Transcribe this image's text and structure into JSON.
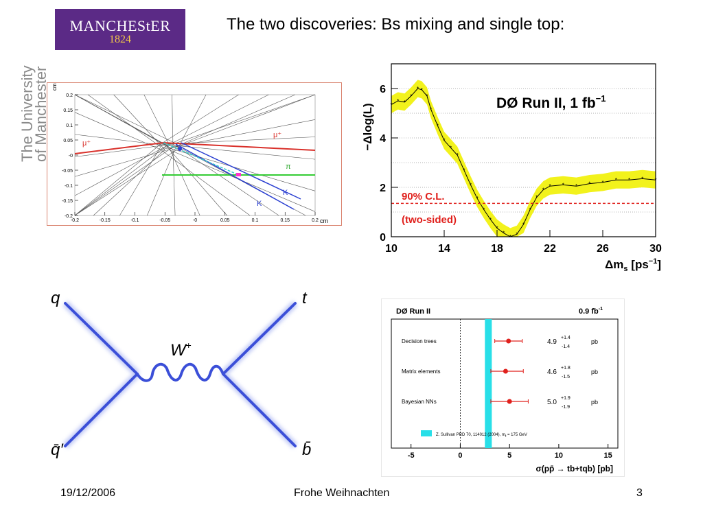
{
  "slide": {
    "title": "The two discoveries: Bs mixing and single top:",
    "logo": {
      "name": "MANCHEStER",
      "year": "1824"
    },
    "vertical_text": [
      "The University",
      "of Manchester"
    ],
    "footer": {
      "date": "19/12/2006",
      "center": "Frohe Weihnachten",
      "page": "3"
    }
  },
  "event_display": {
    "y_unit": "cm",
    "x_unit": "cm",
    "y_ticks": [
      "0.2",
      "0.15",
      "0.1",
      "0.05",
      "-0",
      "-0.05",
      "-0.1",
      "-0.15",
      "-0.2"
    ],
    "x_ticks": [
      "-0.2",
      "-0.15",
      "-0.1",
      "-0.05",
      "-0",
      "0.05",
      "0.1",
      "0.15",
      "0.2"
    ],
    "labels": {
      "mu_minus": "μ⁺",
      "mu_plus": "μ⁺",
      "pi": "π",
      "k1": "K",
      "k2": "K"
    },
    "colors": {
      "muon": "#d9312b",
      "pion": "#33cc33",
      "kaon": "#2a3fd1",
      "track": "#555555",
      "vertex": "#ff33cc"
    }
  },
  "feynman": {
    "labels": {
      "q": "q",
      "qbar": "q̄′",
      "t": "t",
      "b": "b̄",
      "w": "W",
      "w_sup": "+"
    },
    "color": "#3b4fd8"
  },
  "chart_data": [
    {
      "type": "line",
      "title": "DØ  Run II, 1 fb",
      "title_sup": "−1",
      "ylabel": "−Δlog(L)",
      "xlabel": "Δm",
      "xlabel_sub": "s",
      "xlabel_unit": "[ps",
      "xlabel_unit_sup": "−1",
      "xlabel_unit_end": "]",
      "xlim": [
        10,
        30
      ],
      "ylim": [
        0,
        7
      ],
      "x_ticks": [
        "10",
        "14",
        "18",
        "22",
        "26",
        "30"
      ],
      "y_ticks": [
        "0",
        "2",
        "4",
        "6"
      ],
      "grid": true,
      "annotation_cl": "90% C.L.",
      "annotation_sided": "(two-sided)",
      "cl_level": 1.35,
      "x": [
        10.0,
        10.5,
        11.0,
        11.5,
        12.0,
        12.3,
        12.7,
        13.0,
        13.5,
        14.0,
        14.5,
        15.0,
        15.5,
        16.0,
        16.5,
        17.0,
        17.5,
        18.0,
        18.5,
        19.0,
        19.5,
        20.0,
        20.5,
        21.0,
        21.5,
        22.0,
        23.0,
        24.0,
        25.0,
        26.0,
        27.0,
        28.0,
        29.0,
        30.0
      ],
      "y": [
        5.35,
        5.5,
        5.45,
        5.7,
        6.0,
        5.95,
        5.7,
        5.15,
        4.5,
        3.9,
        3.6,
        3.3,
        2.7,
        2.1,
        1.55,
        1.1,
        0.7,
        0.35,
        0.15,
        0.0,
        0.1,
        0.5,
        1.1,
        1.6,
        1.9,
        2.05,
        2.1,
        2.05,
        2.15,
        2.2,
        2.3,
        2.3,
        2.35,
        2.3
      ],
      "band": 0.35,
      "colors": {
        "line": "#000000",
        "band": "#f2f21c",
        "cl": "#e0201c"
      }
    },
    {
      "type": "scatter",
      "title": "DØ Run II",
      "lumi": "0.9 fb",
      "lumi_sup": "-1",
      "xlabel": "σ(pp̄ → tb+tqb) [pb]",
      "xlim": [
        -7,
        16
      ],
      "x_ticks": [
        "-5",
        "0",
        "5",
        "10",
        "15"
      ],
      "theory_band": [
        2.5,
        3.2
      ],
      "theory_label": "Z. Sullivan PRD 70, 114012 (2004), m",
      "theory_label_end": " = 175 GeV",
      "series": [
        {
          "name": "Decision trees",
          "value": 4.9,
          "err_up": 1.4,
          "err_down": 1.4,
          "label": "4.9",
          "up": "+1.4",
          "down": "-1.4",
          "unit": "pb"
        },
        {
          "name": "Matrix elements",
          "value": 4.6,
          "err_up": 1.8,
          "err_down": 1.5,
          "label": "4.6",
          "up": "+1.8",
          "down": "-1.5",
          "unit": "pb"
        },
        {
          "name": "Bayesian NNs",
          "value": 5.0,
          "err_up": 1.9,
          "err_down": 1.9,
          "label": "5.0",
          "up": "+1.9",
          "down": "-1.9",
          "unit": "pb"
        }
      ],
      "colors": {
        "point": "#e0201c",
        "band": "#28dfe8"
      }
    }
  ]
}
